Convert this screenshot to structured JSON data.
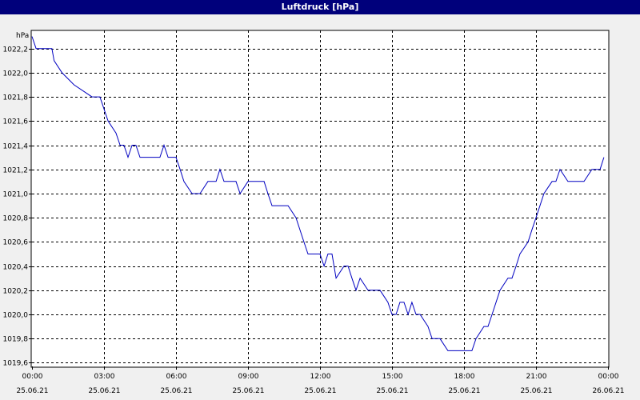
{
  "window": {
    "title": "Luftdruck [hPa]"
  },
  "colors": {
    "titlebar": "#00007b",
    "plot_background": "#ffffff",
    "series": "#0000c0",
    "grid": "#000000"
  },
  "chart_data": {
    "type": "line",
    "title": "Luftdruck [hPa]",
    "ylabel": "hPa",
    "xlabel": "",
    "grid": true,
    "ylim": [
      1019.57,
      1022.35
    ],
    "xlim": [
      "25.06.21 00:00",
      "26.06.21 00:00"
    ],
    "y_ticks": [
      "1019,6",
      "1019,8",
      "1020,0",
      "1020,2",
      "1020,4",
      "1020,6",
      "1020,8",
      "1021,0",
      "1021,2",
      "1021,4",
      "1021,6",
      "1021,8",
      "1022,0",
      "1022,2"
    ],
    "y_tick_values": [
      1019.6,
      1019.8,
      1020.0,
      1020.2,
      1020.4,
      1020.6,
      1020.8,
      1021.0,
      1021.2,
      1021.4,
      1021.6,
      1021.8,
      1022.0,
      1022.2
    ],
    "x_ticks": [
      {
        "time": "00:00",
        "date": "25.06.21"
      },
      {
        "time": "03:00",
        "date": "25.06.21"
      },
      {
        "time": "06:00",
        "date": "25.06.21"
      },
      {
        "time": "09:00",
        "date": "25.06.21"
      },
      {
        "time": "12:00",
        "date": "25.06.21"
      },
      {
        "time": "15:00",
        "date": "25.06.21"
      },
      {
        "time": "18:00",
        "date": "25.06.21"
      },
      {
        "time": "21:00",
        "date": "25.06.21"
      },
      {
        "time": "00:00",
        "date": "26.06.21"
      }
    ],
    "x_tick_hours": [
      0,
      3,
      6,
      9,
      12,
      15,
      18,
      21,
      24
    ],
    "series": [
      {
        "x": [
          0.0,
          0.17,
          0.33,
          0.83,
          0.92,
          1.25,
          1.75,
          2.5,
          2.67,
          2.83,
          3.17,
          3.5,
          3.67,
          3.83,
          4.0,
          4.17,
          4.33,
          4.5,
          4.67,
          5.0,
          5.33,
          5.5,
          5.67,
          6.0,
          6.17,
          6.33,
          6.67,
          7.0,
          7.33,
          7.67,
          7.83,
          8.0,
          8.33,
          8.5,
          8.67,
          9.0,
          9.33,
          9.67,
          9.83,
          10.0,
          10.33,
          10.67,
          11.0,
          11.33,
          11.5,
          11.83,
          12.0,
          12.17,
          12.33,
          12.5,
          12.67,
          13.0,
          13.17,
          13.33,
          13.5,
          13.67,
          14.0,
          14.33,
          14.5,
          14.83,
          15.0,
          15.17,
          15.33,
          15.5,
          15.67,
          15.83,
          16.0,
          16.17,
          16.5,
          16.67,
          17.0,
          17.33,
          17.67,
          18.0,
          18.33,
          18.5,
          18.83,
          19.0,
          19.17,
          19.5,
          19.83,
          20.0,
          20.17,
          20.33,
          20.67,
          20.83,
          21.0,
          21.33,
          21.67,
          21.83,
          22.0,
          22.33,
          22.67,
          23.0,
          23.33,
          23.67,
          23.83
        ],
        "y": [
          1022.3,
          1022.2,
          1022.2,
          1022.2,
          1022.1,
          1022.0,
          1021.9,
          1021.8,
          1021.8,
          1021.8,
          1021.6,
          1021.5,
          1021.4,
          1021.4,
          1021.3,
          1021.4,
          1021.4,
          1021.3,
          1021.3,
          1021.3,
          1021.3,
          1021.4,
          1021.3,
          1021.3,
          1021.2,
          1021.1,
          1021.0,
          1021.0,
          1021.1,
          1021.1,
          1021.2,
          1021.1,
          1021.1,
          1021.1,
          1021.0,
          1021.1,
          1021.1,
          1021.1,
          1021.0,
          1020.9,
          1020.9,
          1020.9,
          1020.8,
          1020.6,
          1020.5,
          1020.5,
          1020.5,
          1020.4,
          1020.5,
          1020.5,
          1020.3,
          1020.4,
          1020.4,
          1020.3,
          1020.2,
          1020.3,
          1020.2,
          1020.2,
          1020.2,
          1020.1,
          1020.0,
          1020.0,
          1020.1,
          1020.1,
          1020.0,
          1020.1,
          1020.0,
          1020.0,
          1019.9,
          1019.8,
          1019.8,
          1019.7,
          1019.7,
          1019.7,
          1019.7,
          1019.8,
          1019.9,
          1019.9,
          1020.0,
          1020.2,
          1020.3,
          1020.3,
          1020.4,
          1020.5,
          1020.6,
          1020.7,
          1020.8,
          1021.0,
          1021.1,
          1021.1,
          1021.2,
          1021.1,
          1021.1,
          1021.1,
          1021.2,
          1021.2,
          1021.3
        ]
      }
    ]
  }
}
